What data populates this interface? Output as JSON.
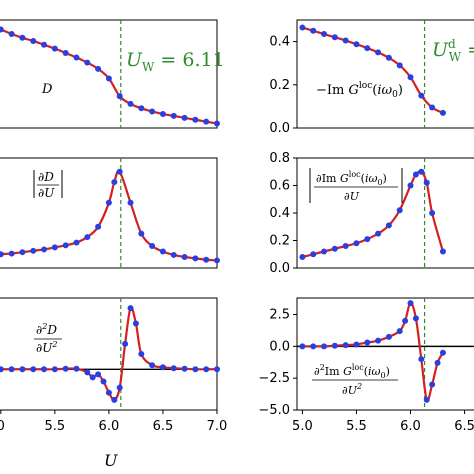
{
  "chart_data": [
    {
      "id": "D",
      "type": "line",
      "label": "D",
      "x": [
        4.9,
        5.0,
        5.1,
        5.2,
        5.3,
        5.4,
        5.5,
        5.6,
        5.7,
        5.8,
        5.9,
        6.0,
        6.1,
        6.2,
        6.3,
        6.4,
        6.5,
        6.6,
        6.7,
        6.8,
        6.9,
        7.0
      ],
      "y": [
        0.8,
        0.775,
        0.74,
        0.71,
        0.685,
        0.655,
        0.625,
        0.59,
        0.555,
        0.515,
        0.465,
        0.39,
        0.25,
        0.19,
        0.155,
        0.13,
        0.11,
        0.095,
        0.08,
        0.065,
        0.05,
        0.035
      ],
      "ylim": [
        0.0,
        0.85
      ],
      "yticks": [],
      "marker_x": 6.11,
      "marker_label": "U_W = 6.11"
    },
    {
      "id": "ImG",
      "type": "line",
      "label": "−Im G^loc(iω0)",
      "x": [
        5.0,
        5.1,
        5.2,
        5.3,
        5.4,
        5.5,
        5.6,
        5.7,
        5.8,
        5.9,
        6.0,
        6.1,
        6.2,
        6.3
      ],
      "y": [
        0.465,
        0.45,
        0.435,
        0.42,
        0.405,
        0.388,
        0.37,
        0.35,
        0.325,
        0.29,
        0.235,
        0.15,
        0.095,
        0.07
      ],
      "ylim": [
        0.0,
        0.5
      ],
      "yticks": [
        "0.0",
        "0.2",
        "0.4"
      ],
      "marker_x": 6.13,
      "marker_label": "U_W^d ="
    },
    {
      "id": "dD",
      "type": "line",
      "label": "|∂D/∂U|",
      "x": [
        4.9,
        5.0,
        5.1,
        5.2,
        5.3,
        5.4,
        5.5,
        5.6,
        5.7,
        5.8,
        5.9,
        6.0,
        6.05,
        6.1,
        6.2,
        6.3,
        6.4,
        6.5,
        6.6,
        6.7,
        6.8,
        6.9,
        7.0
      ],
      "y": [
        0.18,
        0.2,
        0.21,
        0.23,
        0.25,
        0.27,
        0.3,
        0.33,
        0.37,
        0.45,
        0.6,
        0.95,
        1.25,
        1.4,
        0.95,
        0.5,
        0.32,
        0.24,
        0.19,
        0.16,
        0.14,
        0.12,
        0.11
      ],
      "ylim": [
        0.0,
        1.6
      ],
      "yticks": [],
      "marker_x": 6.11
    },
    {
      "id": "dImG",
      "type": "line",
      "label": "|∂Im G^loc(iω0)/∂U|",
      "x": [
        5.0,
        5.1,
        5.2,
        5.3,
        5.4,
        5.5,
        5.6,
        5.7,
        5.8,
        5.9,
        6.0,
        6.05,
        6.1,
        6.15,
        6.2,
        6.3
      ],
      "y": [
        0.08,
        0.1,
        0.12,
        0.14,
        0.16,
        0.18,
        0.21,
        0.25,
        0.31,
        0.42,
        0.6,
        0.68,
        0.7,
        0.62,
        0.4,
        0.12
      ],
      "ylim": [
        0.0,
        0.8
      ],
      "yticks": [
        "0.0",
        "0.2",
        "0.4",
        "0.6",
        "0.8"
      ],
      "marker_x": 6.13
    },
    {
      "id": "d2D",
      "type": "line",
      "label": "∂²D/∂U²",
      "x": [
        4.9,
        5.0,
        5.1,
        5.2,
        5.3,
        5.4,
        5.5,
        5.6,
        5.7,
        5.8,
        5.85,
        5.9,
        5.95,
        6.0,
        6.05,
        6.1,
        6.15,
        6.2,
        6.25,
        6.3,
        6.4,
        6.5,
        6.6,
        6.7,
        6.8,
        6.9,
        7.0
      ],
      "y": [
        0.0,
        0.0,
        0.0,
        0.0,
        0.0,
        0.0,
        0.0,
        0.05,
        0.05,
        -0.3,
        -0.8,
        -0.5,
        -1.2,
        -2.3,
        -3.0,
        -1.8,
        2.5,
        6.0,
        4.5,
        1.5,
        0.4,
        0.2,
        0.1,
        0.05,
        0.0,
        0.0,
        0.0
      ],
      "ylim": [
        -4.0,
        7.0
      ],
      "yticks": [],
      "marker_x": 6.11
    },
    {
      "id": "d2ImG",
      "type": "line",
      "label": "∂²Im G^loc(iω0)/∂U²",
      "x": [
        5.0,
        5.1,
        5.2,
        5.3,
        5.4,
        5.5,
        5.6,
        5.7,
        5.8,
        5.9,
        5.95,
        6.0,
        6.05,
        6.1,
        6.15,
        6.2,
        6.25,
        6.3
      ],
      "y": [
        0.0,
        0.0,
        0.0,
        0.05,
        0.1,
        0.15,
        0.3,
        0.45,
        0.75,
        1.2,
        2.0,
        3.4,
        2.2,
        -1.0,
        -4.2,
        -3.0,
        -1.3,
        -0.5
      ],
      "ylim": [
        -5.0,
        3.8
      ],
      "yticks": [
        "2.5",
        "0.0",
        "−2.5",
        "−5.0"
      ],
      "marker_x": 6.13
    }
  ],
  "axes": {
    "left_xticks": [
      "0",
      "5.5",
      "6.0",
      "6.5",
      "7.0"
    ],
    "right_xticks": [
      "5.0",
      "5.5",
      "6.0",
      "6.5"
    ],
    "xlabel": "U"
  }
}
